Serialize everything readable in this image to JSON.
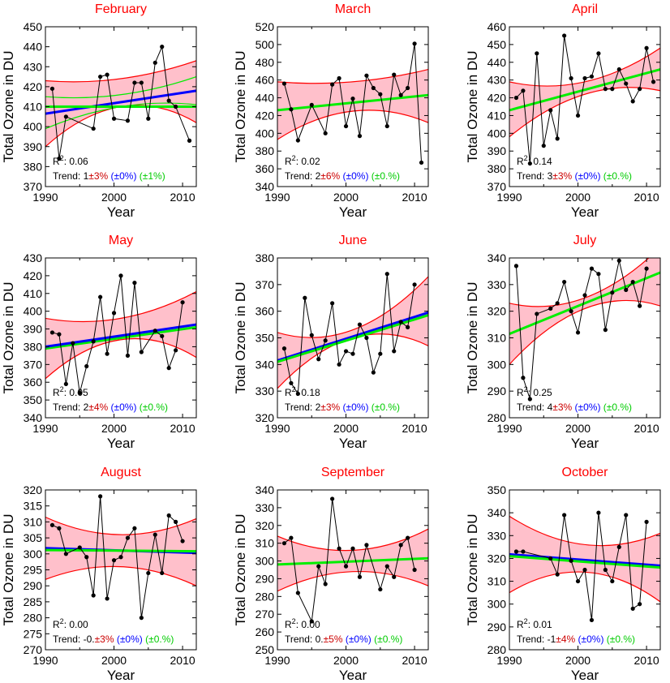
{
  "chart_data": [
    {
      "type": "line",
      "title": "February",
      "xlabel": "Year",
      "ylabel": "Total Ozone in DU",
      "xlim": [
        1990,
        2012
      ],
      "ylim": [
        370,
        450
      ],
      "xticks": [
        "1990",
        "2000",
        "2010"
      ],
      "yticks": [
        "370",
        "380",
        "390",
        "400",
        "410",
        "420",
        "430",
        "440",
        "450"
      ],
      "x": [
        1991,
        1992,
        1993,
        1997,
        1998,
        1999,
        2000,
        2002,
        2003,
        2004,
        2005,
        2006,
        2007,
        2008,
        2009,
        2011
      ],
      "series": [
        {
          "values": [
            419,
            384,
            405,
            399,
            425,
            426,
            404,
            403,
            422,
            422,
            404,
            432,
            440,
            413,
            410,
            393
          ]
        }
      ],
      "fit_lines": [
        {
          "color": "#0000ff",
          "y_start": 406.5,
          "y_end": 418.0
        },
        {
          "color": "#00ee00",
          "y_start": 410.0,
          "y_end": 410.0
        }
      ],
      "upper_band": [
        423,
        424,
        433
      ],
      "lower_band": [
        390,
        410,
        402
      ],
      "band_green_upper": [
        415,
        416,
        425
      ],
      "band_green_lower": [
        399,
        410,
        411
      ],
      "r2_label": "R",
      "r2_sup": "2",
      "r2_value": ": 0.06",
      "trend_prefix": "Trend: ",
      "trend_value": "1",
      "trend_red": "±3%",
      "trend_blue": "(±0%)",
      "trend_green": "(±1%)"
    },
    {
      "type": "line",
      "title": "March",
      "xlabel": "Year",
      "ylabel": "Total Ozone in DU",
      "xlim": [
        1990,
        2012
      ],
      "ylim": [
        340,
        520
      ],
      "xticks": [
        "1990",
        "2000",
        "2010"
      ],
      "yticks": [
        "340",
        "360",
        "380",
        "400",
        "420",
        "440",
        "460",
        "480",
        "500",
        "520"
      ],
      "x": [
        1991,
        1992,
        1993,
        1995,
        1997,
        1998,
        1999,
        2000,
        2001,
        2002,
        2003,
        2004,
        2005,
        2006,
        2007,
        2008,
        2009,
        2010,
        2011
      ],
      "series": [
        {
          "values": [
            456,
            427,
            392,
            432,
            400,
            455,
            462,
            408,
            439,
            397,
            465,
            451,
            444,
            408,
            466,
            443,
            451,
            501,
            367
          ]
        }
      ],
      "fit_lines": [
        {
          "color": "#00ee00",
          "y_start": 426,
          "y_end": 443
        }
      ],
      "upper_band": [
        458,
        458,
        472
      ],
      "lower_band": [
        393,
        425,
        412
      ],
      "r2_label": "R",
      "r2_sup": "2",
      "r2_value": ": 0.02",
      "trend_prefix": "Trend: ",
      "trend_value": "2",
      "trend_red": "±6%",
      "trend_blue": "(±0%)",
      "trend_green": "(±0.%)"
    },
    {
      "type": "line",
      "title": "April",
      "xlabel": "Year",
      "ylabel": "Total Ozone in DU",
      "xlim": [
        1990,
        2012
      ],
      "ylim": [
        370,
        460
      ],
      "xticks": [
        "1990",
        "2000",
        "2010"
      ],
      "yticks": [
        "370",
        "380",
        "390",
        "400",
        "410",
        "420",
        "430",
        "440",
        "450",
        "460"
      ],
      "x": [
        1991,
        1992,
        1993,
        1994,
        1995,
        1996,
        1997,
        1998,
        1999,
        2000,
        2001,
        2002,
        2003,
        2004,
        2005,
        2006,
        2007,
        2008,
        2009,
        2010,
        2011
      ],
      "series": [
        {
          "values": [
            420,
            424,
            383,
            445,
            393,
            413,
            397,
            455,
            431,
            410,
            431,
            432,
            445,
            425,
            425,
            436,
            428,
            418,
            425,
            448,
            429
          ]
        }
      ],
      "fit_lines": [
        {
          "color": "#00ee00",
          "y_start": 413,
          "y_end": 436
        }
      ],
      "upper_band": [
        429,
        429,
        448
      ],
      "lower_band": [
        398,
        422,
        424
      ],
      "r2_label": "R",
      "r2_sup": "2",
      "r2_value": ": 0.14",
      "trend_prefix": "Trend: ",
      "trend_value": "3",
      "trend_red": "±3%",
      "trend_blue": "(±0%)",
      "trend_green": "(±0.%)"
    },
    {
      "type": "line",
      "title": "May",
      "xlabel": "Year",
      "ylabel": "Total Ozone in DU",
      "xlim": [
        1990,
        2012
      ],
      "ylim": [
        340,
        430
      ],
      "xticks": [
        "1990",
        "2000",
        "2010"
      ],
      "yticks": [
        "340",
        "350",
        "360",
        "370",
        "380",
        "390",
        "400",
        "410",
        "420",
        "430"
      ],
      "x": [
        1991,
        1992,
        1993,
        1994,
        1995,
        1996,
        1997,
        1998,
        1999,
        2000,
        2001,
        2002,
        2003,
        2004,
        2006,
        2007,
        2008,
        2009,
        2010
      ],
      "series": [
        {
          "values": [
            388,
            387,
            359,
            382,
            354,
            369,
            383,
            408,
            376,
            399,
            420,
            375,
            416,
            377,
            389,
            386,
            368,
            378,
            405
          ]
        }
      ],
      "fit_lines": [
        {
          "color": "#00ee00",
          "y_start": 379,
          "y_end": 391
        },
        {
          "color": "#0000ff",
          "y_start": 380,
          "y_end": 392.5
        }
      ],
      "upper_band": [
        396,
        396,
        411
      ],
      "lower_band": [
        362,
        384,
        374
      ],
      "r2_label": "R",
      "r2_sup": "2",
      "r2_value": ": 0.05",
      "trend_prefix": "Trend: ",
      "trend_value": "2",
      "trend_red": "±4%",
      "trend_blue": "(±0%)",
      "trend_green": "(±0.%)"
    },
    {
      "type": "line",
      "title": "June",
      "xlabel": "Year",
      "ylabel": "Total Ozone in DU",
      "xlim": [
        1990,
        2012
      ],
      "ylim": [
        320,
        380
      ],
      "xticks": [
        "1990",
        "2000",
        "2010"
      ],
      "yticks": [
        "320",
        "330",
        "340",
        "350",
        "360",
        "370",
        "380"
      ],
      "x": [
        1991,
        1992,
        1993,
        1994,
        1995,
        1996,
        1997,
        1998,
        1999,
        2000,
        2001,
        2002,
        2003,
        2004,
        2005,
        2006,
        2007,
        2008,
        2009,
        2010
      ],
      "series": [
        {
          "values": [
            346,
            333,
            329,
            365,
            351,
            342,
            349,
            363,
            340,
            345,
            344,
            355,
            350,
            337,
            344,
            374,
            345,
            356,
            354,
            370
          ]
        }
      ],
      "fit_lines": [
        {
          "color": "#0000ff",
          "y_start": 341.5,
          "y_end": 359.5
        },
        {
          "color": "#00ee00",
          "y_start": 341,
          "y_end": 358.5
        }
      ],
      "upper_band": [
        352,
        353,
        373
      ],
      "lower_band": [
        331,
        350,
        347
      ],
      "r2_label": "R",
      "r2_sup": "2",
      "r2_value": ": 0.18",
      "trend_prefix": "Trend: ",
      "trend_value": "2",
      "trend_red": "±3%",
      "trend_blue": "(±0%)",
      "trend_green": "(±0.%)"
    },
    {
      "type": "line",
      "title": "July",
      "xlabel": "Year",
      "ylabel": "Total Ozone in DU",
      "xlim": [
        1990,
        2012
      ],
      "ylim": [
        280,
        340
      ],
      "xticks": [
        "1990",
        "2000",
        "2010"
      ],
      "yticks": [
        "280",
        "290",
        "300",
        "310",
        "320",
        "330",
        "340"
      ],
      "x": [
        1991,
        1992,
        1993,
        1994,
        1996,
        1997,
        1998,
        1999,
        2000,
        2001,
        2002,
        2003,
        2004,
        2005,
        2006,
        2007,
        2008,
        2009,
        2010
      ],
      "series": [
        {
          "values": [
            337,
            295,
            287,
            319,
            321,
            323,
            331,
            320,
            312,
            326,
            336,
            334,
            313,
            327,
            339,
            328,
            331,
            322,
            336
          ]
        }
      ],
      "fit_lines": [
        {
          "color": "#00ee00",
          "y_start": 311.5,
          "y_end": 334.5
        }
      ],
      "upper_band": [
        323,
        325,
        344
      ],
      "lower_band": [
        300,
        321,
        322
      ],
      "r2_label": "R",
      "r2_sup": "2",
      "r2_value": ": 0.25",
      "trend_prefix": "Trend: ",
      "trend_value": "4",
      "trend_red": "±3%",
      "trend_blue": "(±0%)",
      "trend_green": "(±0.%)"
    },
    {
      "type": "line",
      "title": "August",
      "xlabel": "Year",
      "ylabel": "Total Ozone in DU",
      "xlim": [
        1990,
        2012
      ],
      "ylim": [
        270,
        320
      ],
      "xticks": [
        "1990",
        "2000",
        "2010"
      ],
      "yticks": [
        "270",
        "275",
        "280",
        "285",
        "290",
        "295",
        "300",
        "305",
        "310",
        "315",
        "320"
      ],
      "x": [
        1991,
        1992,
        1993,
        1995,
        1996,
        1997,
        1998,
        1999,
        2000,
        2001,
        2002,
        2003,
        2004,
        2005,
        2006,
        2007,
        2008,
        2009,
        2010
      ],
      "series": [
        {
          "values": [
            309,
            308,
            300,
            302,
            299,
            287,
            318,
            286,
            298,
            299,
            305,
            308,
            280,
            294,
            306,
            294,
            312,
            310,
            304
          ]
        }
      ],
      "fit_lines": [
        {
          "color": "#0000ff",
          "y_start": 301.8,
          "y_end": 300.3
        },
        {
          "color": "#00ee00",
          "y_start": 301.2,
          "y_end": 300.8
        }
      ],
      "upper_band": [
        311.5,
        306,
        311
      ],
      "lower_band": [
        292,
        296,
        290
      ],
      "r2_label": "R",
      "r2_sup": "2",
      "r2_value": ": 0.00",
      "trend_prefix": "Trend: ",
      "trend_value": "-0.",
      "trend_red": "±3%",
      "trend_blue": "(±0%)",
      "trend_green": "(±0.%)"
    },
    {
      "type": "line",
      "title": "September",
      "xlabel": "Year",
      "ylabel": "Total Ozone in DU",
      "xlim": [
        1990,
        2012
      ],
      "ylim": [
        250,
        340
      ],
      "xticks": [
        "1990",
        "2000",
        "2010"
      ],
      "yticks": [
        "250",
        "260",
        "270",
        "280",
        "290",
        "300",
        "310",
        "320",
        "330",
        "340"
      ],
      "x": [
        1991,
        1992,
        1993,
        1995,
        1996,
        1997,
        1998,
        1999,
        2000,
        2001,
        2002,
        2003,
        2005,
        2006,
        2007,
        2008,
        2009,
        2010
      ],
      "series": [
        {
          "values": [
            310,
            313,
            282,
            266,
            297,
            287,
            335,
            307,
            297,
            307,
            291,
            309,
            284,
            297,
            291,
            309,
            313,
            295
          ]
        }
      ],
      "fit_lines": [
        {
          "color": "#00ee00",
          "y_start": 298,
          "y_end": 301.5
        }
      ],
      "upper_band": [
        314,
        306,
        318
      ],
      "lower_band": [
        283,
        294,
        286
      ],
      "r2_label": "R",
      "r2_sup": "2",
      "r2_value": ": 0.00",
      "trend_prefix": "Trend: ",
      "trend_value": "0.",
      "trend_red": "±5%",
      "trend_blue": "(±0%)",
      "trend_green": "(±0.%)"
    },
    {
      "type": "line",
      "title": "October",
      "xlabel": "Year",
      "ylabel": "Total Ozone in DU",
      "xlim": [
        1990,
        2012
      ],
      "ylim": [
        280,
        350
      ],
      "xticks": [
        "1990",
        "2000",
        "2010"
      ],
      "yticks": [
        "280",
        "290",
        "300",
        "310",
        "320",
        "330",
        "340",
        "350"
      ],
      "x": [
        1991,
        1992,
        1996,
        1997,
        1998,
        1999,
        2000,
        2001,
        2002,
        2003,
        2004,
        2005,
        2006,
        2007,
        2008,
        2009,
        2010
      ],
      "series": [
        {
          "values": [
            323,
            323,
            320,
            313,
            339,
            319,
            310,
            315,
            293,
            340,
            315,
            310,
            325,
            339,
            298,
            300,
            336
          ]
        }
      ],
      "fit_lines": [
        {
          "color": "#0000ff",
          "y_start": 321.8,
          "y_end": 316.8
        },
        {
          "color": "#00ee00",
          "y_start": 321,
          "y_end": 316
        }
      ],
      "upper_band": [
        338.5,
        326,
        331
      ],
      "lower_band": [
        305,
        314,
        301
      ],
      "r2_label": "R",
      "r2_sup": "2",
      "r2_value": ": 0.01",
      "trend_prefix": "Trend: ",
      "trend_value": "-1",
      "trend_red": "±4%",
      "trend_blue": "(±0%)",
      "trend_green": "(±0.%)"
    }
  ]
}
